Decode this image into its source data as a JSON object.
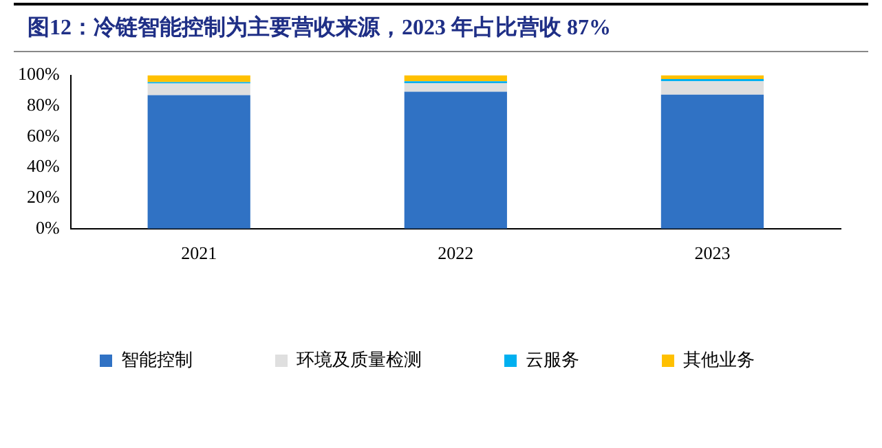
{
  "chart_data": {
    "type": "bar",
    "title": "图12：冷链智能控制为主要营收来源，2023 年占比营收 87%",
    "categories": [
      "2021",
      "2022",
      "2023"
    ],
    "stacked": true,
    "series": [
      {
        "name": "智能控制",
        "color": "#3072c4",
        "values": [
          87.1,
          89.3,
          87.4
        ]
      },
      {
        "name": "环境及质量检测",
        "color": "#dfdfdf",
        "values": [
          7.6,
          5.6,
          8.7
        ]
      },
      {
        "name": "云服务",
        "color": "#00b0f0",
        "values": [
          0.9,
          1.2,
          1.5
        ]
      },
      {
        "name": "其他业务",
        "color": "#ffc000",
        "values": [
          4.4,
          3.9,
          2.4
        ]
      }
    ],
    "ylim": [
      0,
      100
    ],
    "yticks": [
      {
        "value": 0,
        "label": "0%"
      },
      {
        "value": 20,
        "label": "20%"
      },
      {
        "value": 40,
        "label": "40%"
      },
      {
        "value": 60,
        "label": "60%"
      },
      {
        "value": 80,
        "label": "80%"
      },
      {
        "value": 100,
        "label": "100%"
      }
    ],
    "grid": false,
    "legend": "bottom"
  }
}
